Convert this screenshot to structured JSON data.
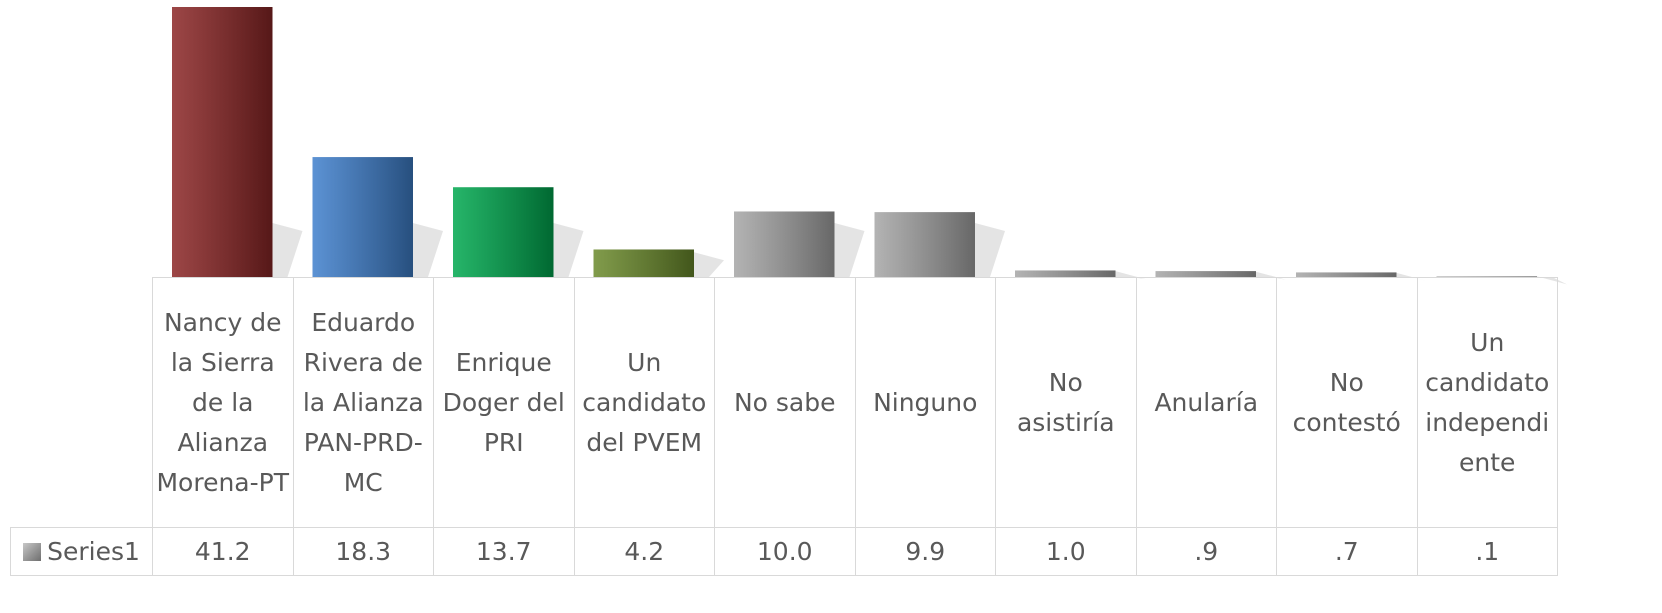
{
  "chart_data": {
    "type": "bar",
    "categories": [
      "Nancy de la Sierra de la Alianza Morena-PT",
      "Eduardo Rivera de la Alianza PAN-PRD-MC",
      "Enrique Doger del PRI",
      "Un candidato del PVEM",
      "No sabe",
      "Ninguno",
      "No asistiría",
      "Anularía",
      "No contestó",
      "Un candidato independiente"
    ],
    "series": [
      {
        "name": "Series1",
        "color": "#9a9a9a",
        "colors": [
          "#8b2626",
          "#3f7fcc",
          "#00a84f",
          "#6b8a2c",
          "#a6a6a6",
          "#a6a6a6",
          "#a6a6a6",
          "#a6a6a6",
          "#a6a6a6",
          "#a6a6a6"
        ],
        "values": [
          41.2,
          18.3,
          13.7,
          4.2,
          10.0,
          9.9,
          1.0,
          0.9,
          0.7,
          0.1
        ],
        "value_labels": [
          "41.2",
          "18.3",
          "13.7",
          "4.2",
          "10.0",
          "9.9",
          "1.0",
          ".9",
          ".7",
          ".1"
        ]
      }
    ]
  }
}
